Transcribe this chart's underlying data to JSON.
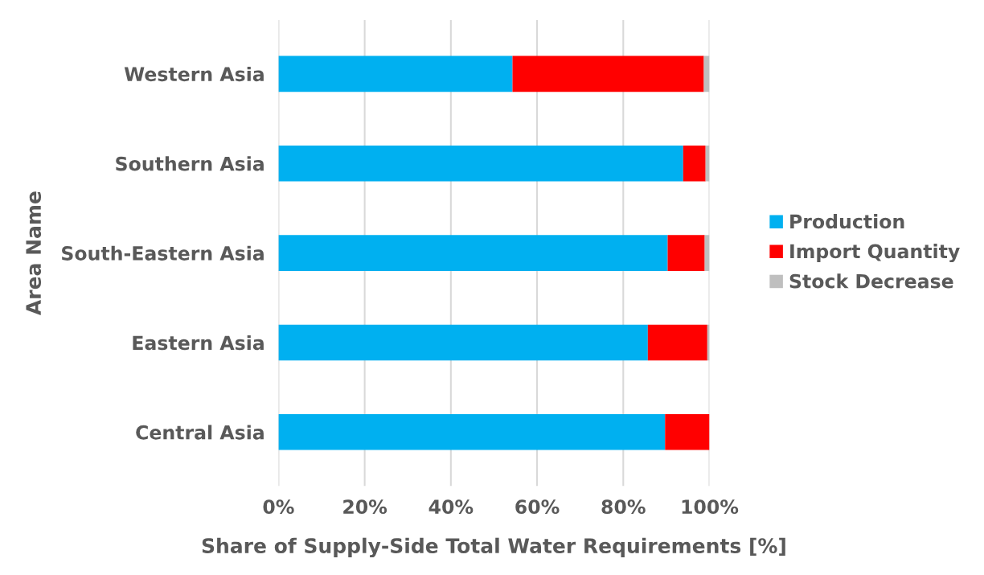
{
  "chart_data": {
    "type": "bar",
    "orientation": "horizontal",
    "stacked": true,
    "xlabel": "Share of Supply-Side Total Water Requirements [%]",
    "ylabel": "Area Name",
    "categories": [
      "Western Asia",
      "Southern Asia",
      "South-Eastern Asia",
      "Eastern Asia",
      "Central Asia"
    ],
    "series": [
      {
        "name": "Production",
        "color": "#00b0f0",
        "values": [
          54.3,
          93.9,
          90.3,
          85.7,
          89.7
        ]
      },
      {
        "name": "Import Quantity",
        "color": "#ff0000",
        "values": [
          44.4,
          5.2,
          8.6,
          13.8,
          10.3
        ]
      },
      {
        "name": "Stock Decrease",
        "color": "#bfbfbf",
        "values": [
          1.3,
          0.9,
          1.1,
          0.5,
          0
        ]
      }
    ],
    "xlim": [
      0,
      100
    ],
    "xticks": [
      {
        "value": 0,
        "label": "0%"
      },
      {
        "value": 20,
        "label": "20%"
      },
      {
        "value": 40,
        "label": "40%"
      },
      {
        "value": 60,
        "label": "60%"
      },
      {
        "value": 80,
        "label": "80%"
      },
      {
        "value": 100,
        "label": "100%"
      }
    ],
    "grid": "x",
    "legend": "right"
  }
}
